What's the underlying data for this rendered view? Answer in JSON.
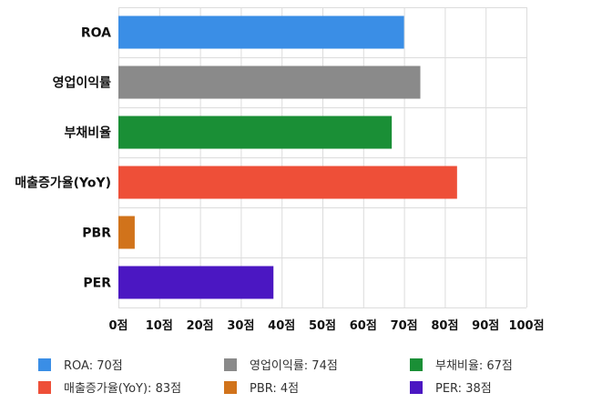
{
  "chart_data": {
    "type": "bar",
    "orientation": "horizontal",
    "categories": [
      "ROA",
      "영업이익률",
      "부채비율",
      "매출증가율(YoY)",
      "PBR",
      "PER"
    ],
    "values": [
      70,
      74,
      67,
      83,
      4,
      38
    ],
    "colors": [
      "#3a8ee6",
      "#8a8a8a",
      "#1a8f36",
      "#ee4f38",
      "#d1731b",
      "#4b17c2"
    ],
    "xlim": [
      0,
      100
    ],
    "x_ticks": [
      0,
      10,
      20,
      30,
      40,
      50,
      60,
      70,
      80,
      90,
      100
    ],
    "tick_suffix": "점",
    "grid": true,
    "legend": {
      "placement": "bottom",
      "entries": [
        {
          "label": "ROA: 70점",
          "color": "#3a8ee6"
        },
        {
          "label": "영업이익률: 74점",
          "color": "#8a8a8a"
        },
        {
          "label": "부채비율: 67점",
          "color": "#1a8f36"
        },
        {
          "label": "매출증가율(YoY): 83점",
          "color": "#ee4f38"
        },
        {
          "label": "PBR: 4점",
          "color": "#d1731b"
        },
        {
          "label": "PER: 38점",
          "color": "#4b17c2"
        }
      ]
    }
  }
}
